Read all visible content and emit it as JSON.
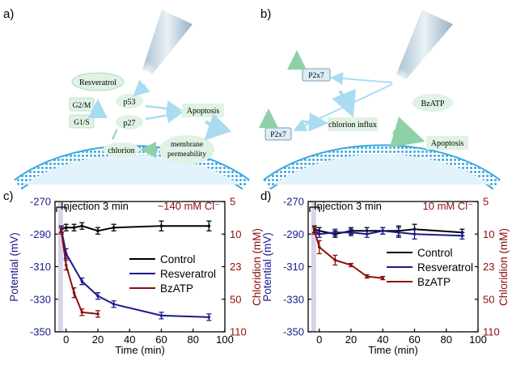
{
  "figure": {
    "panel_a": {
      "label": "a)",
      "nodes": {
        "resveratrol": "Resveratrol",
        "g2m": "G2/M",
        "g1s": "G1/S",
        "p53": "p53",
        "p27": "p27",
        "apoptosis": "Apoptosis",
        "membrane_1": "membrane",
        "membrane_2": "permeability",
        "chlorion": "chlorion"
      }
    },
    "panel_b": {
      "label": "b)",
      "nodes": {
        "p2x7_top": "P2x7",
        "p2x7_left": "P2x7",
        "bzatp": "BzATP",
        "chlorion_influx": "chlorion influx",
        "apoptosis": "Apoptosis"
      }
    },
    "colors": {
      "membrane_blue": "#39a9e0",
      "cell_fill": "#e3f3fb",
      "node_green": "#dff2e4",
      "arrow_blue": "#a9dcf2",
      "arrow_green": "#8fd0a8",
      "control": "#000000",
      "resveratrol": "#1a1a8c",
      "bzatp": "#8b0f0f",
      "left_axis": "#1a1a8c",
      "right_axis": "#8b0f0f",
      "injection_band": "#c9c4e4"
    }
  },
  "chart_data": [
    {
      "panel": "c)",
      "type": "line",
      "annotation_injection": "Injection 3 min",
      "annotation_conc": "~140 mM Cl⁻",
      "xlabel": "Time (min)",
      "ylabel_left": "Potential (mV)",
      "ylabel_right": "Chloridion (mM)",
      "xlim": [
        -7,
        100
      ],
      "xticks": [
        "0",
        "20",
        "40",
        "60",
        "80",
        "100"
      ],
      "xtick_values": [
        0,
        20,
        40,
        60,
        80,
        100
      ],
      "ylim": [
        -350,
        -270
      ],
      "yticks": [
        "-270",
        "-290",
        "-310",
        "-330",
        "-350"
      ],
      "ytick_values": [
        -270,
        -290,
        -310,
        -330,
        -350
      ],
      "right_ticks": [
        "5",
        "10",
        "23",
        "50",
        "110"
      ],
      "right_tick_values": [
        -270,
        -290,
        -310,
        -330,
        -350
      ],
      "injection_band": [
        -5,
        -2
      ],
      "series": [
        {
          "name": "Control",
          "color": "#000000",
          "x": [
            -3,
            0,
            5,
            10,
            20,
            30,
            60,
            90
          ],
          "y": [
            -287,
            -286,
            -286,
            -285,
            -288,
            -286,
            -285,
            -285
          ],
          "err": [
            2,
            2,
            2,
            2,
            2,
            2,
            3,
            3
          ]
        },
        {
          "name": "Resveratrol",
          "color": "#1a1a8c",
          "x": [
            -3,
            0,
            10,
            20,
            30,
            60,
            90
          ],
          "y": [
            -287,
            -302,
            -319,
            -328,
            -333,
            -340,
            -341
          ],
          "err": [
            2,
            3,
            2,
            2,
            2,
            2,
            2
          ]
        },
        {
          "name": "BzATP",
          "color": "#8b0f0f",
          "x": [
            -3,
            0,
            5,
            10,
            20
          ],
          "y": [
            -288,
            -309,
            -326,
            -338,
            -339
          ],
          "err": [
            2,
            3,
            3,
            2,
            2
          ]
        }
      ],
      "legend": [
        "Control",
        "Resveratrol",
        "BzATP"
      ]
    },
    {
      "panel": "d)",
      "type": "line",
      "annotation_injection": "Injection 3 min",
      "annotation_conc": "10 mM Cl⁻",
      "xlabel": "Time (min)",
      "ylabel_left": "Potential (mV)",
      "ylabel_right": "Chloridion (mM)",
      "xlim": [
        -7,
        100
      ],
      "xticks": [
        "0",
        "20",
        "40",
        "60",
        "80",
        "100"
      ],
      "xtick_values": [
        0,
        20,
        40,
        60,
        80,
        100
      ],
      "ylim": [
        -350,
        -270
      ],
      "yticks": [
        "-270",
        "-290",
        "-310",
        "-330",
        "-350"
      ],
      "ytick_values": [
        -270,
        -290,
        -310,
        -330,
        -350
      ],
      "right_ticks": [
        "5",
        "10",
        "23",
        "50",
        "110"
      ],
      "right_tick_values": [
        -270,
        -290,
        -310,
        -330,
        -350
      ],
      "injection_band": [
        -5,
        -2
      ],
      "series": [
        {
          "name": "Control",
          "color": "#000000",
          "x": [
            -3,
            0,
            10,
            20,
            30,
            40,
            50,
            60,
            90
          ],
          "y": [
            -287,
            -288,
            -290,
            -288,
            -288,
            -288,
            -288,
            -287,
            -289
          ],
          "err": [
            2,
            2,
            2,
            2,
            2,
            2,
            3,
            3,
            2
          ]
        },
        {
          "name": "Resveratrol",
          "color": "#1a1a8c",
          "x": [
            -3,
            0,
            10,
            20,
            30,
            40,
            50,
            60,
            90
          ],
          "y": [
            -288,
            -290,
            -289,
            -289,
            -290,
            -288,
            -289,
            -290,
            -291
          ],
          "err": [
            2,
            2,
            2,
            2,
            2,
            2,
            3,
            3,
            2
          ]
        },
        {
          "name": "BzATP",
          "color": "#8b0f0f",
          "x": [
            -3,
            0,
            10,
            20,
            30,
            40
          ],
          "y": [
            -288,
            -298,
            -306,
            -309,
            -316,
            -317
          ],
          "err": [
            2,
            4,
            3,
            1,
            1,
            1
          ]
        }
      ],
      "legend": [
        "Control",
        "Resveratrol",
        "BzATP"
      ]
    }
  ]
}
